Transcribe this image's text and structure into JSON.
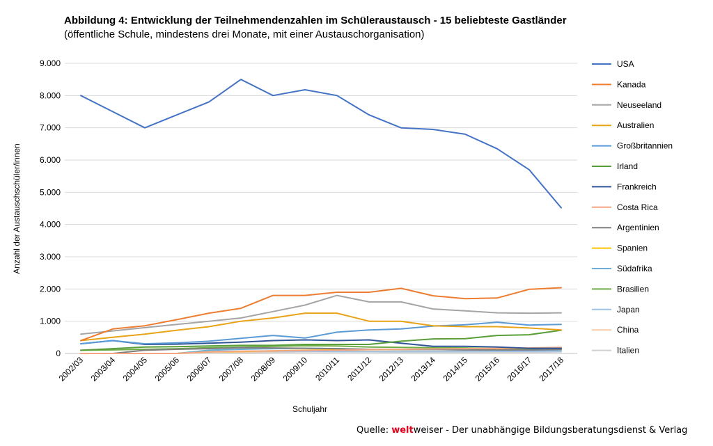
{
  "header": {
    "title": "Abbildung 4: Entwicklung der Teilnehmendenzahlen im Schüleraustausch - 15 beliebteste Gastländer",
    "subtitle": "(öffentliche Schule, mindestens drei Monate, mit einer Austauschorganisation)"
  },
  "footer": {
    "source_prefix": "Quelle: ",
    "source_brand": "welt",
    "source_rest": "weiser - Der unabhängige Bildungsberatungsdienst & Verlag"
  },
  "chart_data": {
    "type": "line",
    "xlabel": "Schuljahr",
    "ylabel": "Anzahl der Austauschschüler/innen",
    "ylim": [
      0,
      9000
    ],
    "yticks": [
      0,
      1000,
      2000,
      3000,
      4000,
      5000,
      6000,
      7000,
      8000,
      9000
    ],
    "ytick_labels": [
      "0",
      "1.000",
      "2.000",
      "3.000",
      "4.000",
      "5.000",
      "6.000",
      "7.000",
      "8.000",
      "9.000"
    ],
    "grid": true,
    "legend_position": "right",
    "categories": [
      "2002/03",
      "2003/04",
      "2004/05",
      "2005/06",
      "2006/07",
      "2007/08",
      "2008/09",
      "2009/10",
      "2010/11",
      "2011/12",
      "2012/13",
      "2013/14",
      "2014/15",
      "2015/16",
      "2016/17",
      "2017/18"
    ],
    "series": [
      {
        "name": "USA",
        "color": "#4472c4",
        "values": [
          8000,
          7500,
          7000,
          7400,
          7800,
          8500,
          8000,
          8180,
          8000,
          7400,
          7000,
          6950,
          6800,
          6350,
          5700,
          4520
        ]
      },
      {
        "name": "Kanada",
        "color": "#ed7d31",
        "values": [
          400,
          760,
          860,
          1050,
          1250,
          1400,
          1800,
          1800,
          1900,
          1900,
          2020,
          1790,
          1700,
          1720,
          1990,
          2040
        ]
      },
      {
        "name": "Neuseeland",
        "color": "#a5a5a5",
        "values": [
          600,
          700,
          800,
          900,
          1000,
          1100,
          1300,
          1500,
          1800,
          1600,
          1600,
          1380,
          1320,
          1260,
          1250,
          1260
        ]
      },
      {
        "name": "Australien",
        "color": "#e8a317",
        "values": [
          400,
          500,
          600,
          720,
          830,
          1000,
          1100,
          1250,
          1250,
          1000,
          1000,
          860,
          830,
          830,
          790,
          730
        ]
      },
      {
        "name": "Großbritannien",
        "color": "#5b9bd5",
        "values": [
          300,
          400,
          300,
          330,
          380,
          470,
          560,
          480,
          660,
          730,
          760,
          850,
          890,
          970,
          880,
          900
        ]
      },
      {
        "name": "Irland",
        "color": "#5a9e3a",
        "values": [
          100,
          150,
          200,
          210,
          230,
          250,
          250,
          280,
          280,
          280,
          380,
          450,
          460,
          560,
          580,
          720
        ]
      },
      {
        "name": "Frankreich",
        "color": "#2f5597",
        "values": [
          300,
          400,
          280,
          290,
          320,
          350,
          400,
          420,
          400,
          420,
          320,
          220,
          220,
          200,
          160,
          160
        ]
      },
      {
        "name": "Costa Rica",
        "color": "#f4a582",
        "values": [
          0,
          0,
          0,
          0,
          50,
          70,
          80,
          90,
          100,
          120,
          130,
          140,
          150,
          160,
          170,
          190
        ]
      },
      {
        "name": "Argentinien",
        "color": "#7f7f7f",
        "values": [
          0,
          0,
          100,
          130,
          150,
          180,
          170,
          160,
          150,
          130,
          120,
          120,
          110,
          110,
          110,
          120
        ]
      },
      {
        "name": "Spanien",
        "color": "#ffc000",
        "values": [
          0,
          0,
          0,
          0,
          50,
          60,
          80,
          100,
          110,
          120,
          120,
          130,
          140,
          150,
          160,
          180
        ]
      },
      {
        "name": "Südafrika",
        "color": "#6baed6",
        "values": [
          0,
          0,
          0,
          0,
          100,
          130,
          150,
          160,
          150,
          130,
          120,
          120,
          110,
          100,
          100,
          110
        ]
      },
      {
        "name": "Brasilien",
        "color": "#70ad47",
        "values": [
          100,
          110,
          130,
          150,
          180,
          200,
          220,
          240,
          230,
          200,
          190,
          180,
          170,
          150,
          140,
          140
        ]
      },
      {
        "name": "Japan",
        "color": "#9dc3e6",
        "values": [
          0,
          0,
          0,
          0,
          60,
          70,
          70,
          70,
          60,
          60,
          60,
          60,
          60,
          60,
          60,
          60
        ]
      },
      {
        "name": "China",
        "color": "#f8cbad",
        "values": [
          0,
          0,
          0,
          0,
          40,
          50,
          60,
          80,
          80,
          70,
          60,
          60,
          60,
          50,
          50,
          60
        ]
      },
      {
        "name": "Italien",
        "color": "#d0d0d0",
        "values": [
          0,
          0,
          0,
          0,
          20,
          30,
          40,
          50,
          50,
          50,
          40,
          40,
          40,
          40,
          40,
          50
        ]
      }
    ]
  }
}
